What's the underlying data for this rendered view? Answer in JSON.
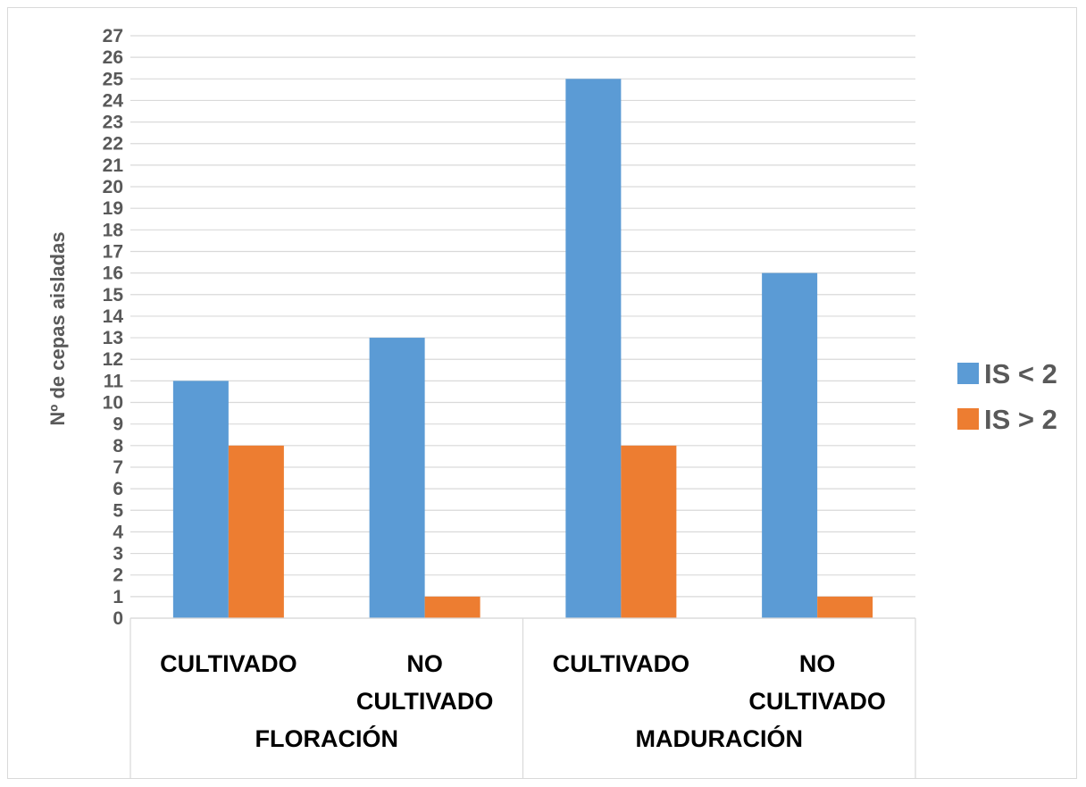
{
  "chart_data": {
    "type": "bar",
    "title": "",
    "ylabel": "Nº de cepas aisladas",
    "xlabel": "",
    "ylim": [
      0,
      27
    ],
    "yticks": [
      "0",
      "1",
      "2",
      "3",
      "4",
      "5",
      "6",
      "7",
      "8",
      "9",
      "10",
      "11",
      "12",
      "13",
      "14",
      "15",
      "16",
      "17",
      "18",
      "19",
      "20",
      "21",
      "22",
      "23",
      "24",
      "25",
      "26",
      "27"
    ],
    "categories": [
      {
        "label": [
          "CULTIVADO"
        ],
        "group": "FLORACIÓN"
      },
      {
        "label": [
          "NO",
          "CULTIVADO"
        ],
        "group": "FLORACIÓN"
      },
      {
        "label": [
          "CULTIVADO"
        ],
        "group": "MADURACIÓN"
      },
      {
        "label": [
          "NO",
          "CULTIVADO"
        ],
        "group": "MADURACIÓN"
      }
    ],
    "groups": [
      "FLORACIÓN",
      "MADURACIÓN"
    ],
    "series": [
      {
        "name": "IS < 2",
        "color": "#5b9bd5",
        "values": [
          11,
          13,
          25,
          16
        ]
      },
      {
        "name": "IS > 2",
        "color": "#ed7d31",
        "values": [
          8,
          1,
          8,
          1
        ]
      }
    ],
    "grid": true,
    "legend_position": "right"
  }
}
